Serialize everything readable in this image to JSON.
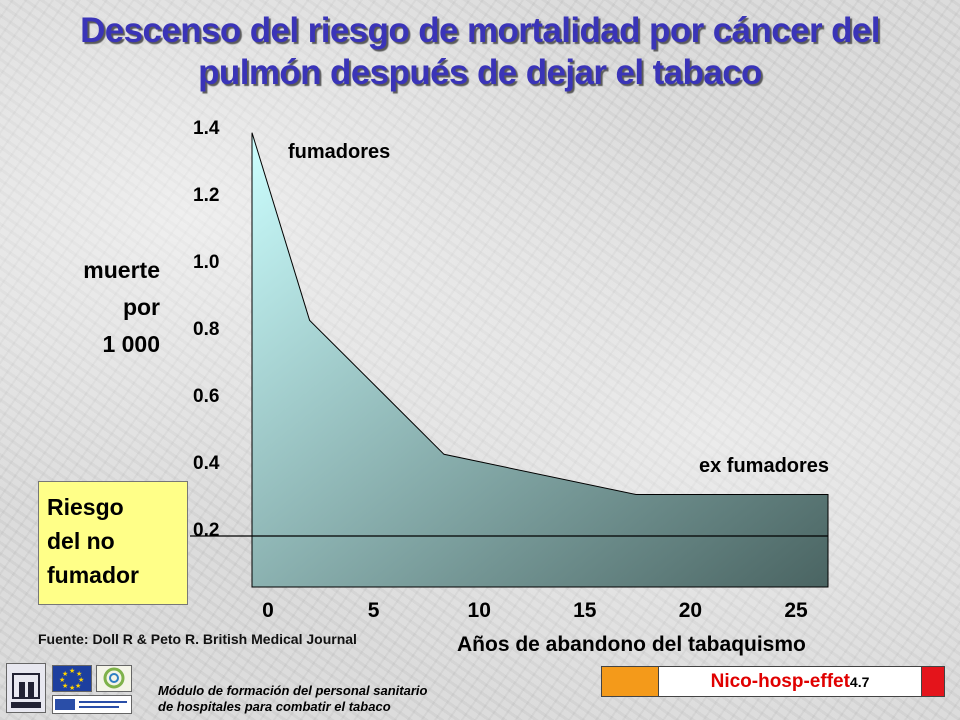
{
  "title_line1": "Descenso del riesgo de mortalidad por cáncer del",
  "title_line2": "pulmón después de dejar el tabaco",
  "ylabel": [
    "muerte",
    "por",
    "1 000"
  ],
  "nonsmoker_label": [
    "Riesgo",
    "del no",
    "fumador"
  ],
  "source": "Fuente: Doll R & Peto R.  British Medical Journal",
  "footer_module": [
    "Módulo de formación del personal sanitario",
    "de hospitales  para combatir el tabaco"
  ],
  "badge": {
    "name": "Nico-hosp-effet",
    "number": "4.7"
  },
  "chart_data": {
    "type": "area",
    "x": [
      0,
      3,
      10,
      20,
      30
    ],
    "y": [
      1.38,
      0.82,
      0.42,
      0.3,
      0.3
    ],
    "xlim": [
      0,
      30
    ],
    "ylim": [
      0.0,
      1.4
    ],
    "xticks": [
      "0",
      "5",
      "10",
      "15",
      "20",
      "25"
    ],
    "yticks": [
      "1.4",
      "1.2",
      "1.0",
      "0.8",
      "0.6",
      "0.4",
      "0.2"
    ],
    "xlabel": "Años de abandono del tabaquismo",
    "ylabel": "muerte por 1 000",
    "annotations": {
      "smokers": "fumadores",
      "ex_smokers": "ex fumadores"
    },
    "reference_line": {
      "label": "Riesgo del no fumador",
      "y": 0.2
    },
    "grid": false,
    "colors": {
      "fill_top": "#ccffff",
      "fill_bottom": "#4a6462",
      "line": "#000000"
    }
  }
}
